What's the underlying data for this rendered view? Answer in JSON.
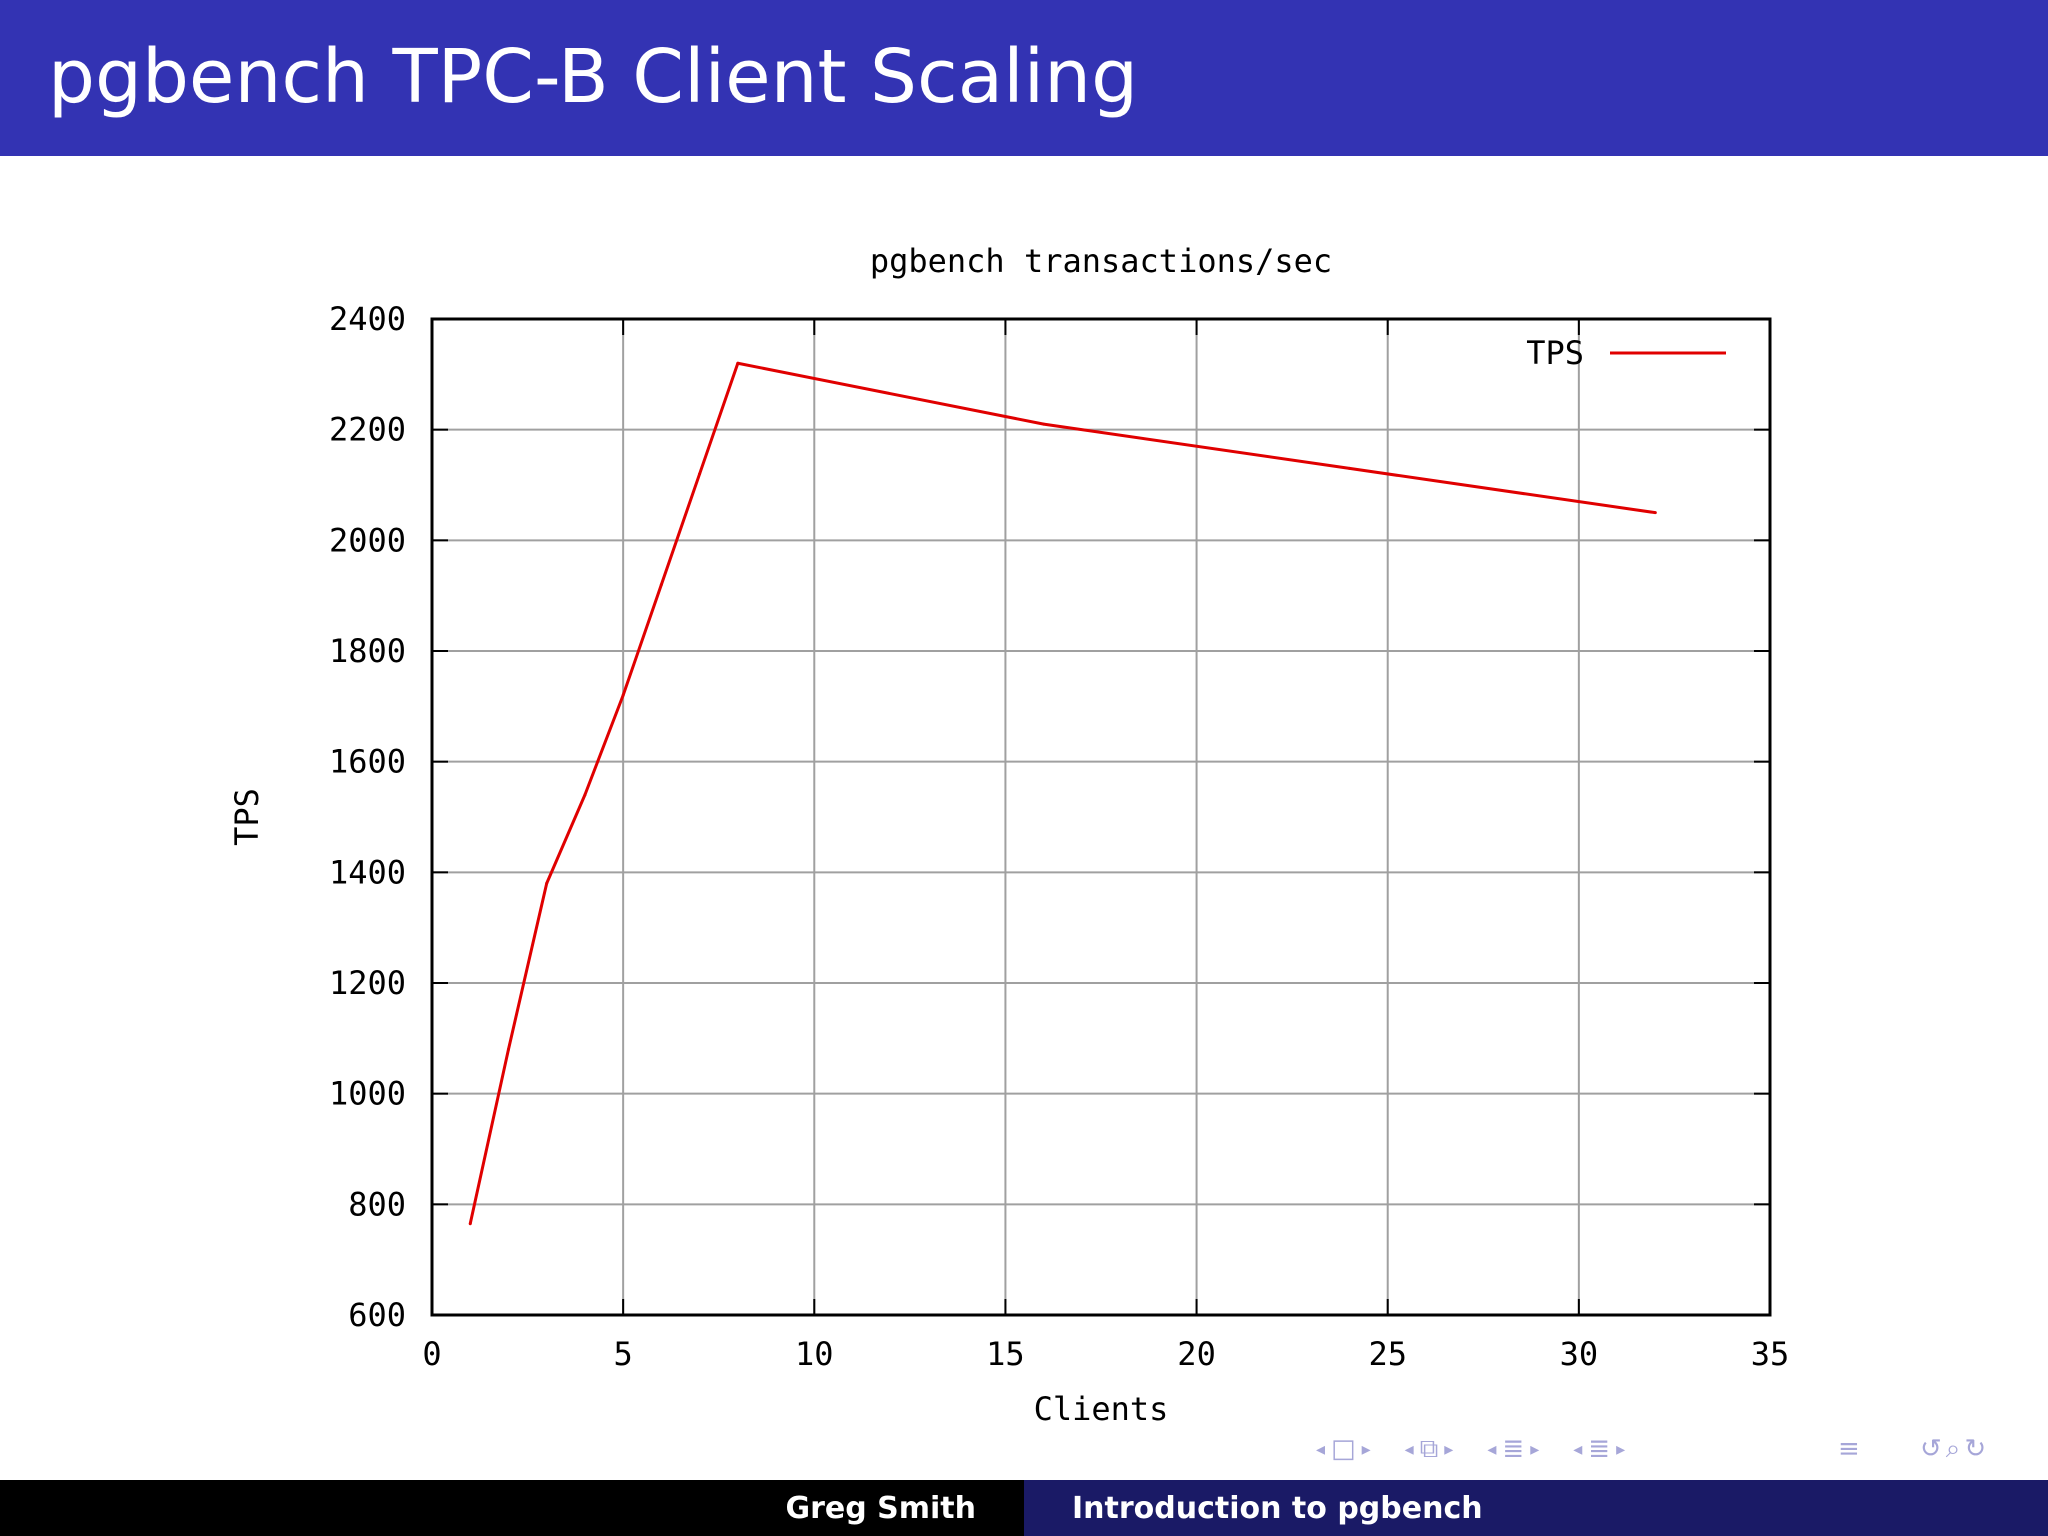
{
  "slide": {
    "title": "pgbench TPC-B Client Scaling"
  },
  "footer": {
    "author": "Greg Smith",
    "talk_title": "Introduction to pgbench"
  },
  "nav": {
    "icons": [
      "arrow-left-icon",
      "frame-icon",
      "arrow-right-icon",
      "arrow-left-icon",
      "subsection-icon",
      "arrow-right-icon",
      "arrow-left-icon",
      "section-icon",
      "arrow-right-icon",
      "arrow-left-icon",
      "subsection-icon",
      "arrow-right-icon",
      "align-icon",
      "undo-icon",
      "search-icon",
      "redo-icon"
    ]
  },
  "colors": {
    "title_bar": "#3333b3",
    "footer_left": "#000000",
    "footer_right": "#1a1a66",
    "series": "#e00000",
    "grid": "#a0a0a0"
  },
  "chart_data": {
    "type": "line",
    "title": "pgbench transactions/sec",
    "xlabel": "Clients",
    "ylabel": "TPS",
    "xlim": [
      0,
      35
    ],
    "ylim": [
      600,
      2400
    ],
    "xticks": [
      0,
      5,
      10,
      15,
      20,
      25,
      30,
      35
    ],
    "yticks": [
      600,
      800,
      1000,
      1200,
      1400,
      1600,
      1800,
      2000,
      2200,
      2400
    ],
    "grid": true,
    "legend": "top-right",
    "series": [
      {
        "name": "TPS",
        "x": [
          1,
          2,
          3,
          4,
          5,
          6,
          7,
          8,
          16,
          24,
          32
        ],
        "y": [
          765,
          1080,
          1380,
          1540,
          1720,
          1920,
          2120,
          2320,
          2210,
          2130,
          2050
        ]
      }
    ]
  }
}
